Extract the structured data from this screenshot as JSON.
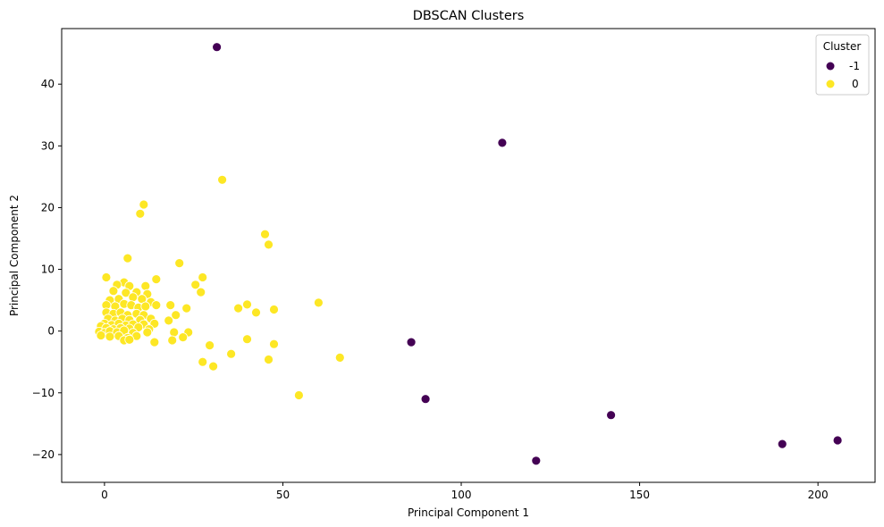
{
  "chart_data": {
    "type": "scatter",
    "title": "DBSCAN Clusters",
    "xlabel": "Principal Component 1",
    "ylabel": "Principal Component 2",
    "xlim": [
      -12,
      216
    ],
    "ylim": [
      -24.5,
      49
    ],
    "xticks": [
      0,
      50,
      100,
      150,
      200
    ],
    "yticks": [
      -20,
      -10,
      0,
      10,
      20,
      30,
      40
    ],
    "grid": false,
    "legend": {
      "title": "Cluster",
      "placement": "top-right"
    },
    "series": [
      {
        "name": "-1",
        "color": "#440154",
        "points": [
          [
            31.5,
            46
          ],
          [
            111.5,
            30.5
          ],
          [
            86,
            -1.8
          ],
          [
            90,
            -11
          ],
          [
            121,
            -21
          ],
          [
            142,
            -13.6
          ],
          [
            190,
            -18.3
          ],
          [
            205.5,
            -17.7
          ]
        ]
      },
      {
        "name": "0",
        "color": "#fde725",
        "points": [
          [
            33,
            24.5
          ],
          [
            11,
            20.5
          ],
          [
            10,
            19
          ],
          [
            45,
            15.7
          ],
          [
            46,
            14
          ],
          [
            6.5,
            11.8
          ],
          [
            21,
            11
          ],
          [
            0.5,
            8.7
          ],
          [
            27.5,
            8.7
          ],
          [
            14.5,
            8.4
          ],
          [
            5.5,
            7.9
          ],
          [
            3.5,
            7.5
          ],
          [
            7,
            7.3
          ],
          [
            11.5,
            7.3
          ],
          [
            25.5,
            7.5
          ],
          [
            2.5,
            6.5
          ],
          [
            6,
            6.2
          ],
          [
            9,
            6.3
          ],
          [
            12,
            6
          ],
          [
            27,
            6.3
          ],
          [
            1.5,
            5
          ],
          [
            4,
            5.2
          ],
          [
            8,
            5.5
          ],
          [
            10.5,
            5.2
          ],
          [
            13,
            4.7
          ],
          [
            0.5,
            4.2
          ],
          [
            3,
            4
          ],
          [
            5.5,
            4.4
          ],
          [
            7.5,
            4.2
          ],
          [
            9.5,
            3.8
          ],
          [
            11.5,
            4
          ],
          [
            14.5,
            4.2
          ],
          [
            18.5,
            4.2
          ],
          [
            40,
            4.3
          ],
          [
            37.5,
            3.7
          ],
          [
            23,
            3.7
          ],
          [
            47.5,
            3.5
          ],
          [
            60,
            4.6
          ],
          [
            42.5,
            3
          ],
          [
            0.5,
            3
          ],
          [
            2.5,
            2.8
          ],
          [
            4.5,
            3
          ],
          [
            6.5,
            2.6
          ],
          [
            9,
            2.8
          ],
          [
            11,
            2.6
          ],
          [
            20,
            2.6
          ],
          [
            1,
            2
          ],
          [
            3,
            1.7
          ],
          [
            5,
            2
          ],
          [
            7,
            1.8
          ],
          [
            10,
            1.8
          ],
          [
            13,
            2
          ],
          [
            18,
            1.7
          ],
          [
            0,
            1.2
          ],
          [
            2,
            1
          ],
          [
            4,
            1.2
          ],
          [
            6,
            0.9
          ],
          [
            8,
            1.1
          ],
          [
            11,
            1.1
          ],
          [
            14,
            1.2
          ],
          [
            -1,
            0.8
          ],
          [
            0.5,
            0.5
          ],
          [
            2.5,
            0.3
          ],
          [
            4.5,
            0.5
          ],
          [
            7,
            0.4
          ],
          [
            9.5,
            0.6
          ],
          [
            12.5,
            0.3
          ],
          [
            -1.5,
            -0.1
          ],
          [
            0,
            -0.3
          ],
          [
            1.5,
            0
          ],
          [
            3.5,
            -0.2
          ],
          [
            5.5,
            0.1
          ],
          [
            8,
            -0.3
          ],
          [
            12,
            -0.2
          ],
          [
            19.5,
            -0.2
          ],
          [
            23.5,
            -0.2
          ],
          [
            -1,
            -0.7
          ],
          [
            1.5,
            -0.9
          ],
          [
            4,
            -0.8
          ],
          [
            6.5,
            -1.1
          ],
          [
            9,
            -0.8
          ],
          [
            22,
            -1
          ],
          [
            40,
            -1.3
          ],
          [
            19,
            -1.5
          ],
          [
            5.5,
            -1.5
          ],
          [
            7,
            -1.4
          ],
          [
            14,
            -1.8
          ],
          [
            47.5,
            -2.1
          ],
          [
            29.5,
            -2.3
          ],
          [
            35.5,
            -3.7
          ],
          [
            66,
            -4.3
          ],
          [
            46,
            -4.6
          ],
          [
            27.5,
            -5
          ],
          [
            30.5,
            -5.7
          ],
          [
            54.5,
            -10.4
          ]
        ]
      }
    ]
  }
}
